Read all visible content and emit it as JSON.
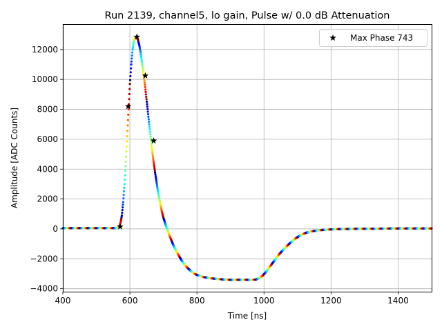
{
  "chart_data": {
    "type": "scatter",
    "title": "Run 2139, channel5, lo gain, Pulse w/ 0.0 dB Attenuation",
    "xlabel": "Time [ns]",
    "ylabel": "Amplitude [ADC Counts]",
    "xlim": [
      400,
      1500
    ],
    "ylim": [
      -4200,
      13700
    ],
    "xticks": [
      400,
      600,
      800,
      1000,
      1200,
      1400
    ],
    "yticks": [
      -4000,
      -2000,
      0,
      2000,
      4000,
      6000,
      8000,
      10000,
      12000
    ],
    "grid": true,
    "legend": {
      "location": "upper right",
      "entries": [
        "Max Phase 743"
      ]
    },
    "series": [
      {
        "name": "pulse samples",
        "style": "dots colored by phase (jet colormap)",
        "x": [
          400,
          450,
          500,
          540,
          560,
          568,
          572,
          576,
          580,
          584,
          588,
          592,
          596,
          600,
          604,
          608,
          612,
          616,
          620,
          624,
          628,
          632,
          636,
          640,
          645,
          650,
          655,
          660,
          665,
          670,
          675,
          680,
          685,
          690,
          695,
          700,
          710,
          720,
          730,
          740,
          750,
          760,
          770,
          780,
          790,
          800,
          820,
          840,
          860,
          880,
          900,
          920,
          940,
          960,
          975,
          985,
          995,
          1005,
          1015,
          1025,
          1035,
          1045,
          1055,
          1065,
          1075,
          1085,
          1095,
          1105,
          1115,
          1125,
          1140,
          1160,
          1180,
          1200,
          1230,
          1260,
          1300,
          1350,
          1400,
          1450,
          1500
        ],
        "y": [
          50,
          50,
          50,
          50,
          60,
          150,
          400,
          900,
          1800,
          3000,
          4500,
          6200,
          8000,
          9700,
          11000,
          12000,
          12600,
          12800,
          12820,
          12650,
          12300,
          11800,
          11150,
          10500,
          9600,
          8600,
          7550,
          6500,
          5500,
          4600,
          3800,
          3050,
          2350,
          1750,
          1200,
          750,
          50,
          -550,
          -1100,
          -1550,
          -1950,
          -2300,
          -2570,
          -2780,
          -2960,
          -3080,
          -3220,
          -3300,
          -3350,
          -3380,
          -3400,
          -3400,
          -3400,
          -3400,
          -3390,
          -3300,
          -3150,
          -2900,
          -2600,
          -2300,
          -2000,
          -1700,
          -1450,
          -1220,
          -1000,
          -800,
          -620,
          -480,
          -360,
          -260,
          -170,
          -100,
          -60,
          -30,
          -10,
          0,
          10,
          20,
          30,
          30,
          30
        ]
      }
    ],
    "markers": {
      "name": "Max Phase 743",
      "style": "black star",
      "x": [
        571,
        595,
        621,
        646,
        671
      ],
      "y": [
        150,
        8200,
        12850,
        10250,
        5900
      ]
    }
  }
}
